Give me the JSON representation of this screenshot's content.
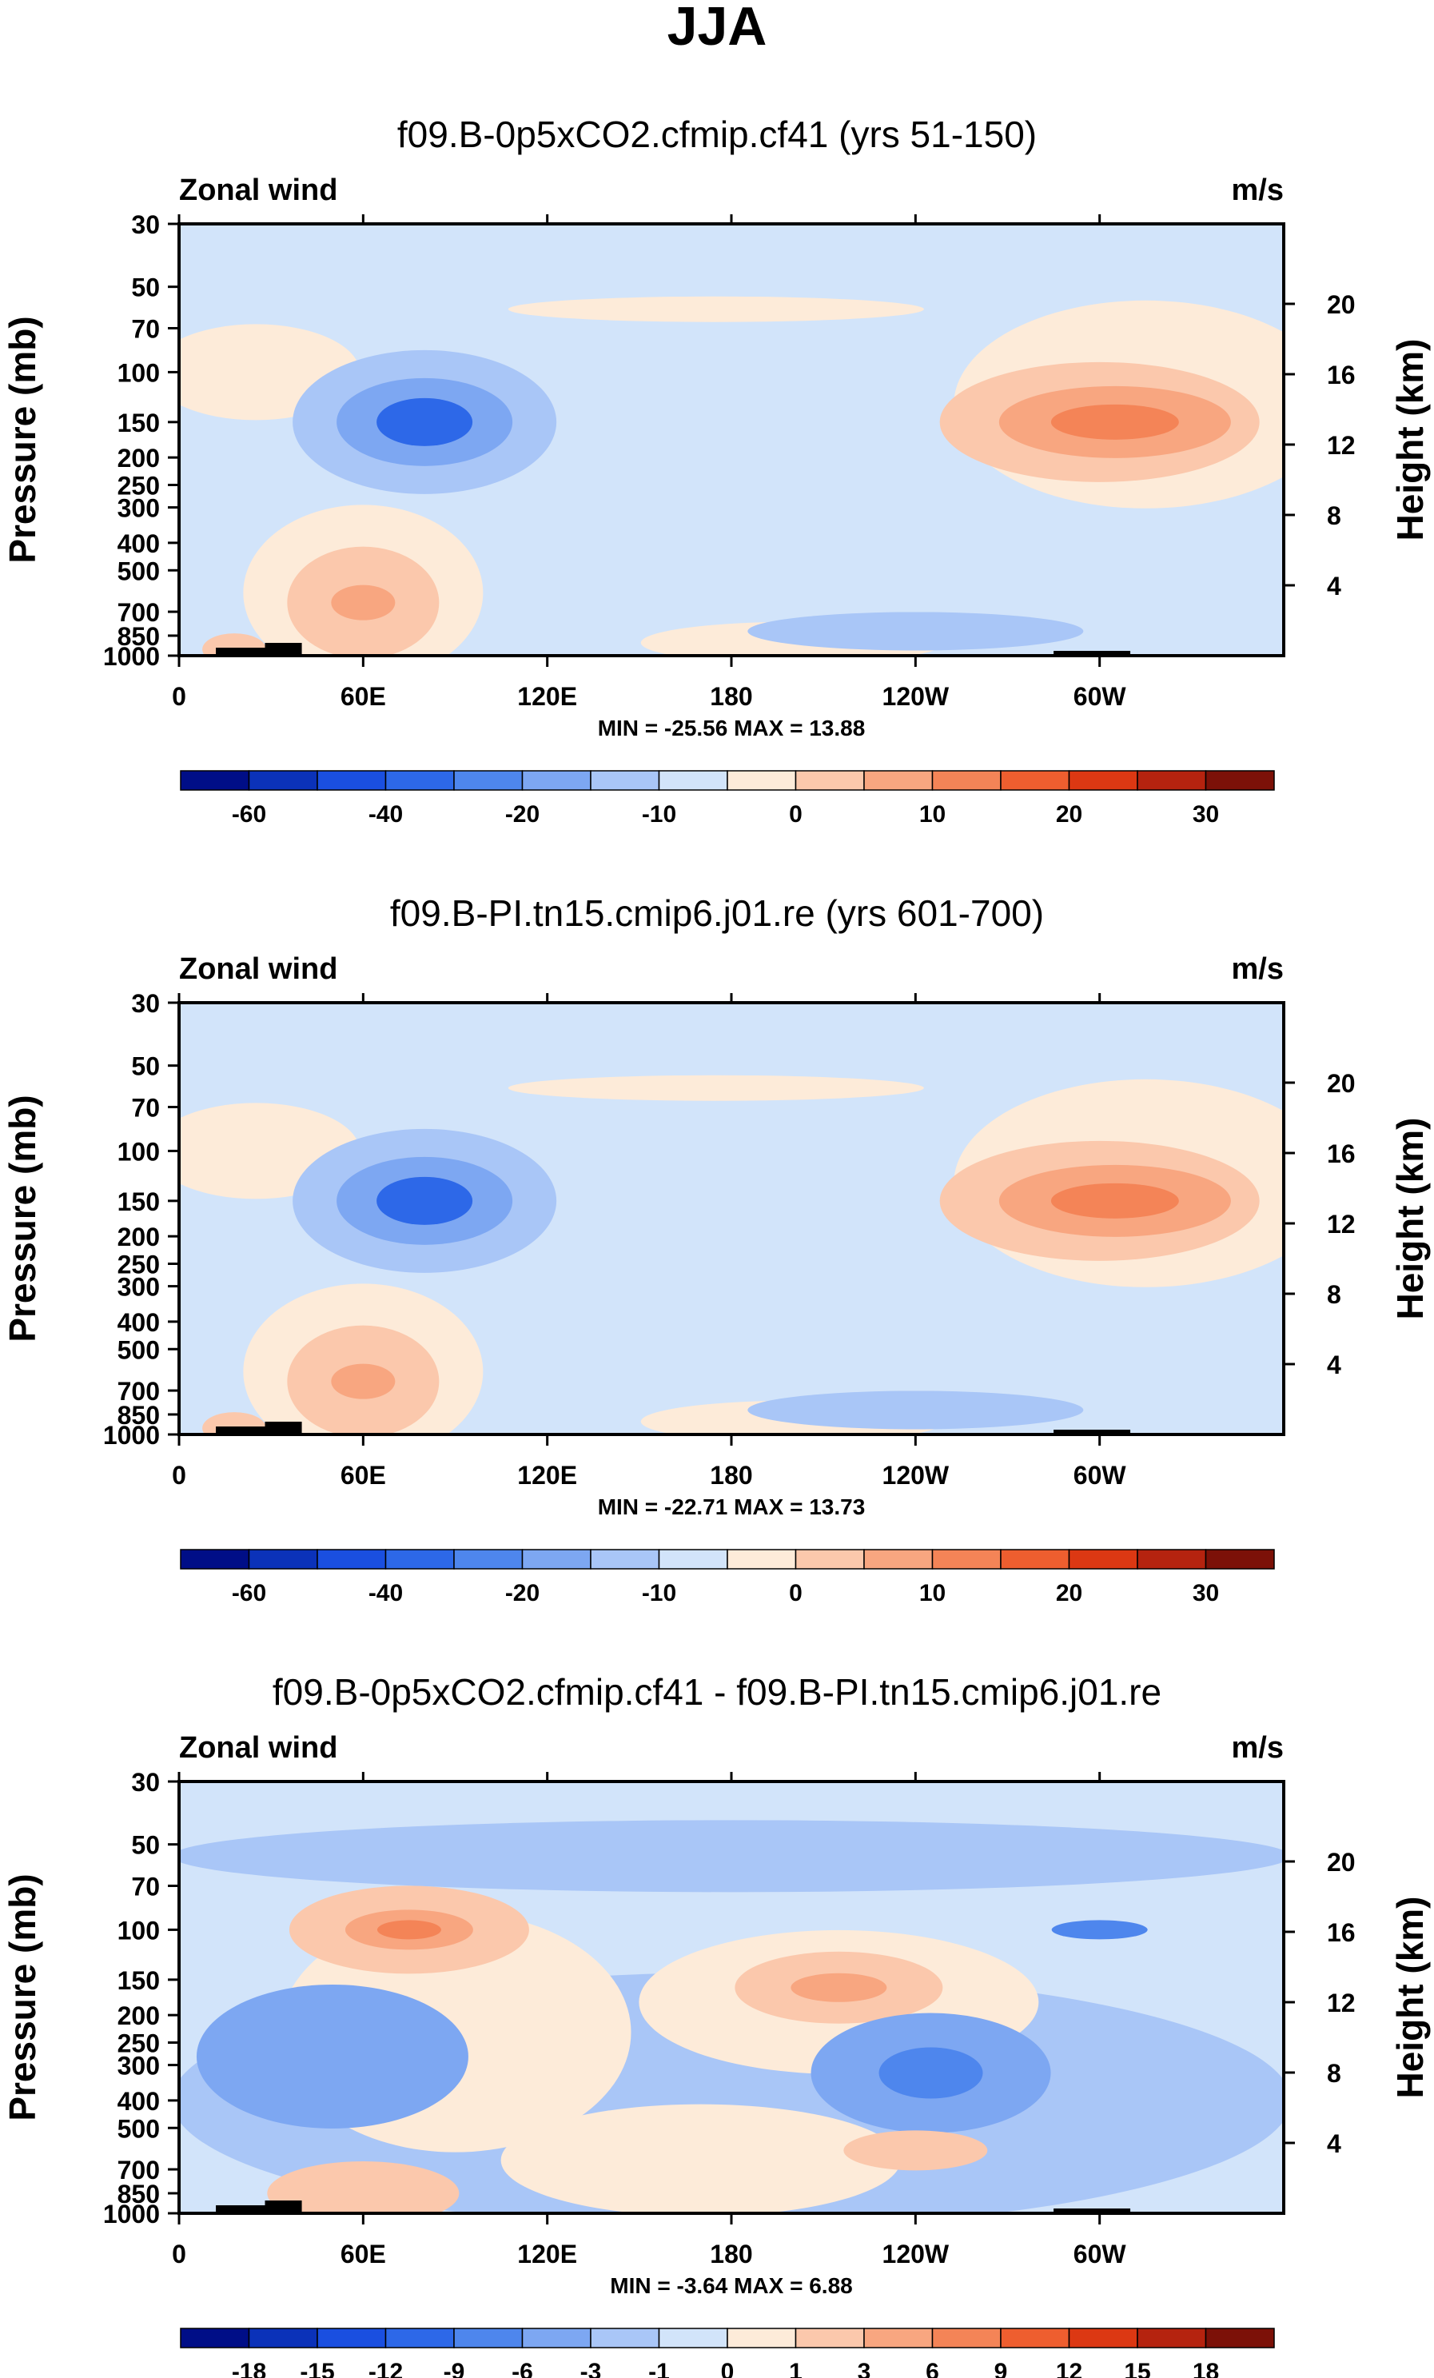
{
  "figure": {
    "title": "JJA"
  },
  "chart_data": [
    {
      "type": "heatmap",
      "title": "f09.B-0p5xCO2.cfmip.cf41 (yrs 51-150)",
      "left_label": "Zonal wind",
      "right_label": "m/s",
      "ylabel": "Pressure (mb)",
      "ylabel_right": "Height (km)",
      "x_ticks": [
        "0",
        "60E",
        "120E",
        "180",
        "120W",
        "60W"
      ],
      "y_ticks": [
        "30",
        "50",
        "70",
        "100",
        "150",
        "200",
        "250",
        "300",
        "400",
        "500",
        "700",
        "850",
        "1000"
      ],
      "right_ticks": [
        "20",
        "16",
        "12",
        "8",
        "4"
      ],
      "min_max": "MIN = -25.56  MAX = 13.88",
      "colorbar_labels": [
        "-60",
        "-40",
        "-20",
        "-10",
        "0",
        "10",
        "20",
        "30"
      ],
      "features": [
        {
          "lon": 80,
          "p": 150,
          "value": -25.5
        },
        {
          "lon": 300,
          "p": 150,
          "value": 13.9
        },
        {
          "lon": 60,
          "p": 650,
          "value": 6
        },
        {
          "lon": 240,
          "p": 800,
          "value": -8
        }
      ]
    },
    {
      "type": "heatmap",
      "title": "f09.B-PI.tn15.cmip6.j01.re (yrs 601-700)",
      "left_label": "Zonal wind",
      "right_label": "m/s",
      "ylabel": "Pressure (mb)",
      "ylabel_right": "Height (km)",
      "x_ticks": [
        "0",
        "60E",
        "120E",
        "180",
        "120W",
        "60W"
      ],
      "y_ticks": [
        "30",
        "50",
        "70",
        "100",
        "150",
        "200",
        "250",
        "300",
        "400",
        "500",
        "700",
        "850",
        "1000"
      ],
      "right_ticks": [
        "20",
        "16",
        "12",
        "8",
        "4"
      ],
      "min_max": "MIN = -22.71  MAX = 13.73",
      "colorbar_labels": [
        "-60",
        "-40",
        "-20",
        "-10",
        "0",
        "10",
        "20",
        "30"
      ],
      "features": [
        {
          "lon": 80,
          "p": 150,
          "value": -22.7
        },
        {
          "lon": 305,
          "p": 150,
          "value": 13.7
        },
        {
          "lon": 60,
          "p": 650,
          "value": 6
        },
        {
          "lon": 240,
          "p": 850,
          "value": -8
        }
      ]
    },
    {
      "type": "heatmap",
      "title": "f09.B-0p5xCO2.cfmip.cf41 - f09.B-PI.tn15.cmip6.j01.re",
      "left_label": "Zonal wind",
      "right_label": "m/s",
      "ylabel": "Pressure (mb)",
      "ylabel_right": "Height (km)",
      "x_ticks": [
        "0",
        "60E",
        "120E",
        "180",
        "120W",
        "60W"
      ],
      "y_ticks": [
        "30",
        "50",
        "70",
        "100",
        "150",
        "200",
        "250",
        "300",
        "400",
        "500",
        "700",
        "850",
        "1000"
      ],
      "right_ticks": [
        "20",
        "16",
        "12",
        "8",
        "4"
      ],
      "min_max": "MIN = -3.64  MAX =  6.88",
      "colorbar_labels": [
        "-18",
        "-15",
        "-12",
        "-9",
        "-6",
        "-3",
        "-1",
        "0",
        "1",
        "3",
        "6",
        "9",
        "12",
        "15",
        "18"
      ],
      "features": [
        {
          "lon": 75,
          "p": 100,
          "value": 6.9
        },
        {
          "lon": 245,
          "p": 330,
          "value": -3.6
        },
        {
          "lon": 50,
          "p": 230,
          "value": -2.5
        },
        {
          "lon": 215,
          "p": 160,
          "value": 2
        }
      ]
    }
  ],
  "colors": {
    "blues": [
      "#000e87",
      "#0b32b9",
      "#1a4fe0",
      "#2d68e8",
      "#4e86ed",
      "#7da7f2",
      "#a9c6f7",
      "#d2e4fa"
    ],
    "reds": [
      "#fdebd9",
      "#fbc8ac",
      "#f8a680",
      "#f48457",
      "#ee5e2f",
      "#dc3813",
      "#b5230f",
      "#7c1108"
    ],
    "frame": "#000000"
  }
}
